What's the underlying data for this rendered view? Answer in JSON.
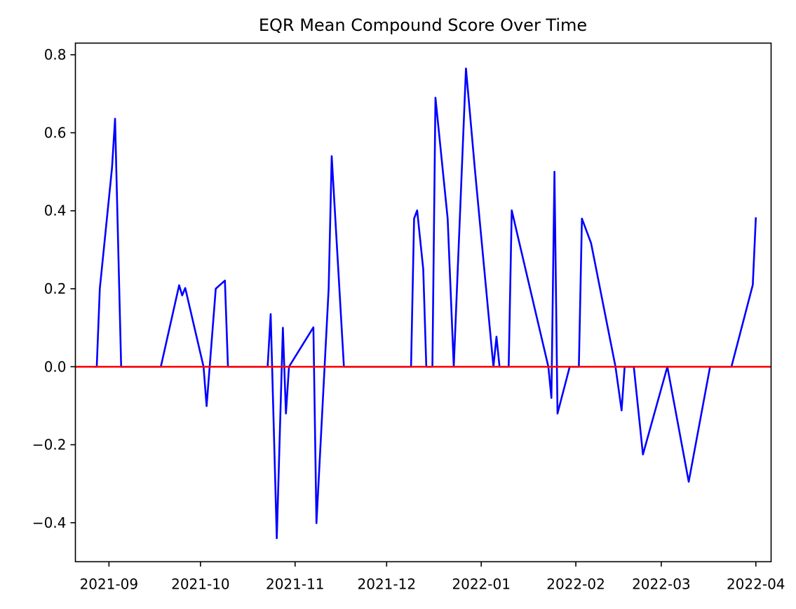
{
  "chart_data": {
    "type": "line",
    "title": "EQR Mean Compound Score Over Time",
    "xlabel": "",
    "ylabel": "",
    "x_axis": {
      "kind": "date",
      "range": [
        "2021-08-21",
        "2022-04-06"
      ],
      "ticks": [
        "2021-09-01",
        "2021-10-01",
        "2021-11-01",
        "2021-12-01",
        "2022-01-01",
        "2022-02-01",
        "2022-03-01",
        "2022-04-01"
      ],
      "tick_labels": [
        "2021-09",
        "2021-10",
        "2021-11",
        "2021-12",
        "2022-01",
        "2022-02",
        "2022-03",
        "2022-04"
      ]
    },
    "y_axis": {
      "range": [
        -0.5,
        0.83
      ],
      "ticks": [
        -0.4,
        -0.2,
        0.0,
        0.2,
        0.4,
        0.6,
        0.8
      ],
      "tick_labels": [
        "−0.4",
        "−0.2",
        "0.0",
        "0.2",
        "0.4",
        "0.6",
        "0.8"
      ]
    },
    "grid": false,
    "legend": "none",
    "series": [
      {
        "color": "#0000ff",
        "points": [
          [
            "2021-08-27",
            0.0
          ],
          [
            "2021-08-28",
            0.0
          ],
          [
            "2021-08-29",
            0.2
          ],
          [
            "2021-09-02",
            0.51
          ],
          [
            "2021-09-03",
            0.636
          ],
          [
            "2021-09-05",
            0.0
          ],
          [
            "2021-09-18",
            0.0
          ],
          [
            "2021-09-24",
            0.209
          ],
          [
            "2021-09-25",
            0.183
          ],
          [
            "2021-09-26",
            0.202
          ],
          [
            "2021-10-02",
            0.0
          ],
          [
            "2021-10-03",
            -0.101
          ],
          [
            "2021-10-06",
            0.2
          ],
          [
            "2021-10-09",
            0.221
          ],
          [
            "2021-10-10",
            0.0
          ],
          [
            "2021-10-21",
            0.0
          ],
          [
            "2021-10-23",
            0.0
          ],
          [
            "2021-10-24",
            0.135
          ],
          [
            "2021-10-26",
            -0.44
          ],
          [
            "2021-10-28",
            0.1
          ],
          [
            "2021-10-29",
            -0.12
          ],
          [
            "2021-10-30",
            0.0
          ],
          [
            "2021-11-07",
            0.101
          ],
          [
            "2021-11-08",
            -0.401
          ],
          [
            "2021-11-12",
            0.2
          ],
          [
            "2021-11-13",
            0.54
          ],
          [
            "2021-11-17",
            0.0
          ],
          [
            "2021-12-09",
            0.0
          ],
          [
            "2021-12-10",
            0.38
          ],
          [
            "2021-12-11",
            0.401
          ],
          [
            "2021-12-13",
            0.25
          ],
          [
            "2021-12-14",
            0.0
          ],
          [
            "2021-12-16",
            0.0
          ],
          [
            "2021-12-17",
            0.69
          ],
          [
            "2021-12-21",
            0.38
          ],
          [
            "2021-12-23",
            0.0
          ],
          [
            "2021-12-27",
            0.765
          ],
          [
            "2021-12-30",
            0.5
          ],
          [
            "2022-01-05",
            0.0
          ],
          [
            "2022-01-06",
            0.077
          ],
          [
            "2022-01-07",
            0.0
          ],
          [
            "2022-01-10",
            0.0
          ],
          [
            "2022-01-11",
            0.401
          ],
          [
            "2022-01-23",
            0.0
          ],
          [
            "2022-01-24",
            -0.08
          ],
          [
            "2022-01-25",
            0.5
          ],
          [
            "2022-01-26",
            -0.12
          ],
          [
            "2022-01-30",
            0.0
          ],
          [
            "2022-02-02",
            0.0
          ],
          [
            "2022-02-03",
            0.38
          ],
          [
            "2022-02-06",
            0.317
          ],
          [
            "2022-02-14",
            0.0
          ],
          [
            "2022-02-16",
            -0.112
          ],
          [
            "2022-02-17",
            0.0
          ],
          [
            "2022-02-20",
            0.0
          ],
          [
            "2022-02-23",
            -0.225
          ],
          [
            "2022-03-03",
            0.0
          ],
          [
            "2022-03-10",
            -0.295
          ],
          [
            "2022-03-17",
            0.0
          ],
          [
            "2022-03-24",
            0.0
          ],
          [
            "2022-03-31",
            0.21
          ],
          [
            "2022-04-01",
            0.383
          ]
        ]
      },
      {
        "color": "#ff0000",
        "points": [
          [
            "2021-08-21",
            0.0
          ],
          [
            "2022-04-06",
            0.0
          ]
        ]
      }
    ]
  }
}
